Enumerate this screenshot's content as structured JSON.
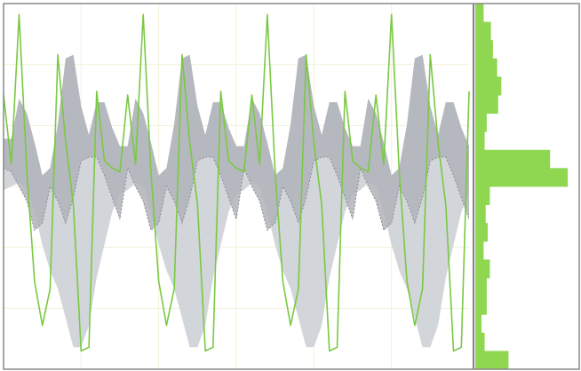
{
  "chart_data": [
    {
      "type": "area",
      "title": "",
      "xlabel": "",
      "ylabel": "",
      "xlim": [
        0,
        3
      ],
      "ylim": [
        0,
        1
      ],
      "x": [
        0,
        0.05,
        0.1,
        0.15,
        0.2,
        0.25,
        0.3,
        0.35,
        0.4,
        0.45,
        0.5,
        0.55,
        0.6,
        0.65,
        0.7,
        0.75,
        0.8,
        0.85,
        0.9,
        0.95,
        1.0,
        1.05,
        1.1,
        1.15,
        1.2,
        1.25,
        1.3,
        1.35,
        1.4,
        1.45,
        1.5,
        1.55,
        1.6,
        1.65,
        1.7,
        1.75,
        1.8,
        1.85,
        1.9,
        1.95,
        2.0,
        2.05,
        2.1,
        2.15,
        2.2,
        2.25,
        2.3,
        2.35,
        2.4,
        2.45,
        2.5,
        2.55,
        2.6,
        2.65,
        2.7,
        2.75,
        2.8,
        2.85,
        2.9,
        2.95,
        3.0
      ],
      "series": [
        {
          "role": "outer band upper",
          "values": [
            0.63,
            0.63,
            0.74,
            0.7,
            0.62,
            0.53,
            0.55,
            0.67,
            0.85,
            0.86,
            0.72,
            0.64,
            0.73,
            0.73,
            0.66,
            0.61,
            0.61,
            0.74,
            0.7,
            0.62,
            0.53,
            0.55,
            0.67,
            0.85,
            0.86,
            0.72,
            0.64,
            0.73,
            0.73,
            0.66,
            0.61,
            0.61,
            0.74,
            0.7,
            0.62,
            0.53,
            0.55,
            0.67,
            0.85,
            0.86,
            0.72,
            0.64,
            0.73,
            0.73,
            0.66,
            0.61,
            0.61,
            0.74,
            0.7,
            0.62,
            0.53,
            0.55,
            0.67,
            0.85,
            0.86,
            0.72,
            0.64,
            0.73,
            0.73,
            0.66,
            0.61
          ]
        },
        {
          "role": "outer band lower",
          "values": [
            0.49,
            0.5,
            0.51,
            0.5,
            0.43,
            0.34,
            0.27,
            0.22,
            0.14,
            0.06,
            0.06,
            0.12,
            0.25,
            0.34,
            0.43,
            0.48,
            0.49,
            0.51,
            0.5,
            0.43,
            0.34,
            0.27,
            0.22,
            0.14,
            0.06,
            0.06,
            0.12,
            0.25,
            0.34,
            0.43,
            0.48,
            0.49,
            0.51,
            0.5,
            0.43,
            0.34,
            0.27,
            0.22,
            0.14,
            0.06,
            0.06,
            0.12,
            0.25,
            0.34,
            0.43,
            0.48,
            0.49,
            0.51,
            0.5,
            0.43,
            0.34,
            0.27,
            0.22,
            0.14,
            0.06,
            0.06,
            0.12,
            0.25,
            0.34,
            0.43,
            0.48
          ]
        },
        {
          "role": "inner band lower",
          "values": [
            0.55,
            0.54,
            0.5,
            0.46,
            0.38,
            0.4,
            0.5,
            0.46,
            0.4,
            0.47,
            0.57,
            0.58,
            0.58,
            0.53,
            0.47,
            0.41,
            0.55,
            0.5,
            0.46,
            0.38,
            0.4,
            0.5,
            0.46,
            0.4,
            0.47,
            0.57,
            0.58,
            0.58,
            0.53,
            0.47,
            0.41,
            0.55,
            0.5,
            0.46,
            0.38,
            0.4,
            0.5,
            0.46,
            0.4,
            0.47,
            0.57,
            0.58,
            0.58,
            0.53,
            0.47,
            0.41,
            0.55,
            0.5,
            0.46,
            0.38,
            0.4,
            0.5,
            0.46,
            0.4,
            0.47,
            0.57,
            0.58,
            0.58,
            0.53,
            0.47,
            0.41
          ]
        },
        {
          "role": "highlighted line",
          "values": [
            0.75,
            0.56,
            0.97,
            0.54,
            0.24,
            0.12,
            0.22,
            0.86,
            0.62,
            0.45,
            0.05,
            0.06,
            0.76,
            0.57,
            0.55,
            0.54,
            0.75,
            0.56,
            0.97,
            0.54,
            0.24,
            0.12,
            0.22,
            0.86,
            0.62,
            0.45,
            0.05,
            0.06,
            0.76,
            0.57,
            0.55,
            0.54,
            0.75,
            0.56,
            0.97,
            0.54,
            0.24,
            0.12,
            0.22,
            0.86,
            0.62,
            0.45,
            0.05,
            0.06,
            0.76,
            0.57,
            0.55,
            0.54,
            0.75,
            0.56,
            0.97,
            0.54,
            0.24,
            0.12,
            0.22,
            0.86,
            0.62,
            0.45,
            0.05,
            0.06,
            0.76
          ]
        }
      ],
      "grid": true,
      "legend": "none",
      "colors": {
        "outer_band": "#d2d5d9",
        "inner_band": "#b0b3b8",
        "line": "#7ac943",
        "border": "#888888",
        "grid": "#f3f1d8"
      }
    },
    {
      "type": "bar",
      "orientation": "horizontal",
      "title": "",
      "xlabel": "",
      "ylabel": "",
      "ylim": [
        0,
        1
      ],
      "bin_centers": [
        0.975,
        0.925,
        0.875,
        0.825,
        0.775,
        0.725,
        0.675,
        0.625,
        0.575,
        0.525,
        0.475,
        0.425,
        0.375,
        0.325,
        0.275,
        0.225,
        0.175,
        0.125,
        0.075,
        0.025
      ],
      "values": [
        8,
        15,
        17,
        21,
        25,
        22,
        11,
        9,
        72,
        89,
        14,
        10,
        12,
        8,
        14,
        11,
        11,
        6,
        9,
        32
      ],
      "xlim": [
        0,
        100
      ],
      "colors": {
        "bar": "#8fd651",
        "axis": "#555555"
      }
    }
  ]
}
